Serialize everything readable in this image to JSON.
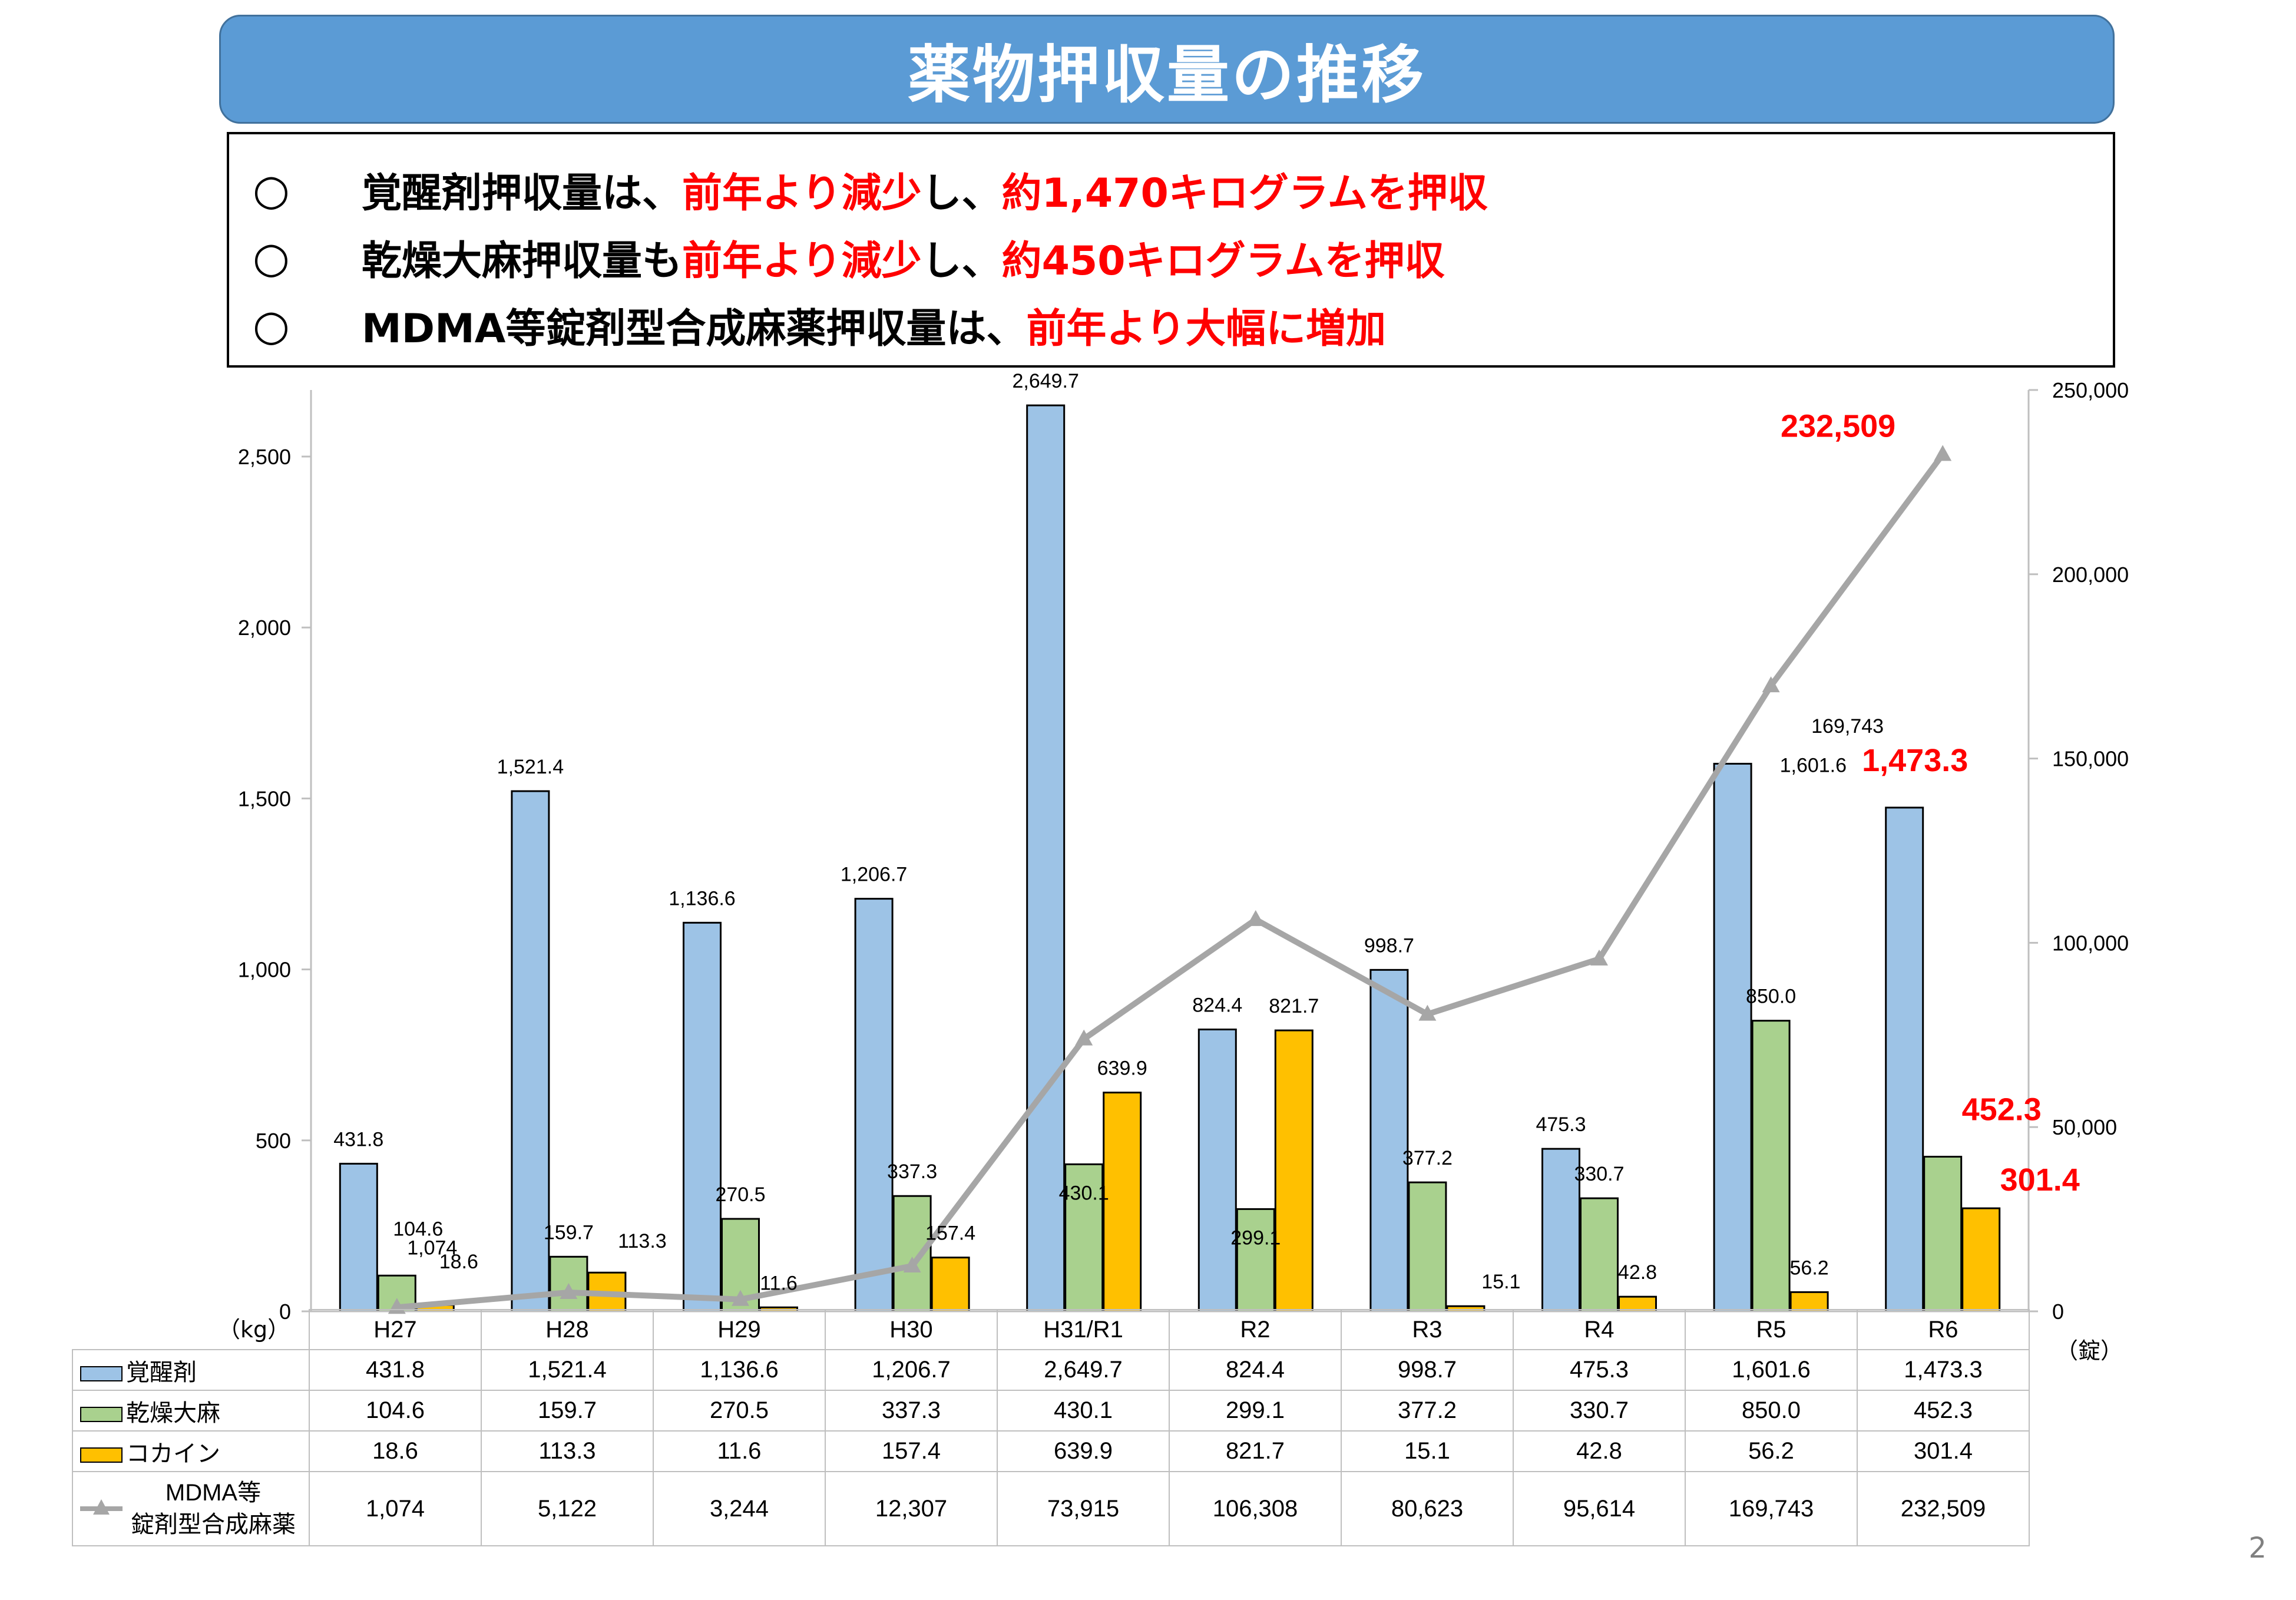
{
  "title": "薬物押収量の推移",
  "summary": [
    {
      "bullet": "○",
      "parts": [
        {
          "text": "覚醒剤押収量は、",
          "red": false
        },
        {
          "text": "前年より減少",
          "red": true
        },
        {
          "text": "し、",
          "red": false
        },
        {
          "text": "約1,470キログラムを押収",
          "red": true
        }
      ]
    },
    {
      "bullet": "○",
      "parts": [
        {
          "text": "乾燥大麻押収量も",
          "red": false
        },
        {
          "text": "前年より減少",
          "red": true
        },
        {
          "text": "し、",
          "red": false
        },
        {
          "text": "約450キログラムを押収",
          "red": true
        }
      ]
    },
    {
      "bullet": "○",
      "parts": [
        {
          "text": "MDMA等錠剤型合成麻薬押収量は、",
          "red": false
        },
        {
          "text": "前年より大幅に増加",
          "red": true
        }
      ]
    }
  ],
  "chart_data": {
    "type": "bar",
    "categories": [
      "H27",
      "H28",
      "H29",
      "H30",
      "H31/R1",
      "R2",
      "R3",
      "R4",
      "R5",
      "R6"
    ],
    "series": [
      {
        "name": "覚醒剤",
        "type": "bar",
        "axis": "left",
        "color": "#9dc3e6",
        "values": [
          431.8,
          1521.4,
          1136.6,
          1206.7,
          2649.7,
          824.4,
          998.7,
          475.3,
          1601.6,
          1473.3
        ],
        "labels": [
          "431.8",
          "1,521.4",
          "1,136.6",
          "1,206.7",
          "2,649.7",
          "824.4",
          "998.7",
          "475.3",
          "1,601.6",
          "1,473.3"
        ]
      },
      {
        "name": "乾燥大麻",
        "type": "bar",
        "axis": "left",
        "color": "#a9d18e",
        "values": [
          104.6,
          159.7,
          270.5,
          337.3,
          430.1,
          299.1,
          377.2,
          330.7,
          850.0,
          452.3
        ],
        "labels": [
          "104.6",
          "159.7",
          "270.5",
          "337.3",
          "430.1",
          "299.1",
          "377.2",
          "330.7",
          "850.0",
          "452.3"
        ]
      },
      {
        "name": "コカイン",
        "type": "bar",
        "axis": "left",
        "color": "#ffc000",
        "values": [
          18.6,
          113.3,
          11.6,
          157.4,
          639.9,
          821.7,
          15.1,
          42.8,
          56.2,
          301.4
        ],
        "labels": [
          "18.6",
          "113.3",
          "11.6",
          "157.4",
          "639.9",
          "821.7",
          "15.1",
          "42.8",
          "56.2",
          "301.4"
        ]
      },
      {
        "name": "MDMA等錠剤型合成麻薬",
        "name_lines": [
          "MDMA等",
          "錠剤型合成麻薬"
        ],
        "type": "line",
        "axis": "right",
        "color": "#a6a6a6",
        "values": [
          1074,
          5122,
          3244,
          12307,
          73915,
          106308,
          80623,
          95614,
          169743,
          232509
        ],
        "labels": [
          "1,074",
          "5,122",
          "3,244",
          "12,307",
          "73,915",
          "106,308",
          "80,623",
          "95,614",
          "169,743",
          "232,509"
        ]
      }
    ],
    "y_left": {
      "unit": "（kg）",
      "range": [
        0,
        2700
      ],
      "ticks": [
        0,
        500,
        1000,
        1500,
        2000,
        2500
      ],
      "tick_labels": [
        "0",
        "500",
        "1,000",
        "1,500",
        "2,000",
        "2,500"
      ]
    },
    "y_right": {
      "unit": "（錠）",
      "range": [
        0,
        250000
      ],
      "ticks": [
        0,
        50000,
        100000,
        150000,
        200000,
        250000
      ],
      "tick_labels": [
        "0",
        "50,000",
        "100,000",
        "150,000",
        "200,000",
        "250,000"
      ]
    },
    "chart_labels": [
      {
        "series": 0,
        "index": 0,
        "text": "431.8"
      },
      {
        "series": 1,
        "index": 0,
        "text": "104.6"
      },
      {
        "series": 3,
        "index": 0,
        "text": "1,074"
      },
      {
        "series": 2,
        "index": 0,
        "text": "18.6"
      },
      {
        "series": 0,
        "index": 1,
        "text": "1,521.4"
      },
      {
        "series": 1,
        "index": 1,
        "text": "159.7"
      },
      {
        "series": 2,
        "index": 1,
        "text": "113.3"
      },
      {
        "series": 0,
        "index": 2,
        "text": "1,136.6"
      },
      {
        "series": 1,
        "index": 2,
        "text": "270.5"
      },
      {
        "series": 2,
        "index": 2,
        "text": "11.6"
      },
      {
        "series": 0,
        "index": 3,
        "text": "1,206.7"
      },
      {
        "series": 1,
        "index": 3,
        "text": "337.3"
      },
      {
        "series": 2,
        "index": 3,
        "text": "157.4"
      },
      {
        "series": 0,
        "index": 4,
        "text": "2,649.7"
      },
      {
        "series": 1,
        "index": 4,
        "text": "430.1"
      },
      {
        "series": 2,
        "index": 4,
        "text": "639.9"
      },
      {
        "series": 0,
        "index": 5,
        "text": "824.4"
      },
      {
        "series": 1,
        "index": 5,
        "text": "299.1"
      },
      {
        "series": 2,
        "index": 5,
        "text": "821.7"
      },
      {
        "series": 0,
        "index": 6,
        "text": "998.7"
      },
      {
        "series": 1,
        "index": 6,
        "text": "377.2"
      },
      {
        "series": 2,
        "index": 6,
        "text": "15.1"
      },
      {
        "series": 0,
        "index": 7,
        "text": "475.3"
      },
      {
        "series": 1,
        "index": 7,
        "text": "330.7"
      },
      {
        "series": 2,
        "index": 7,
        "text": "42.8"
      },
      {
        "series": 0,
        "index": 8,
        "text": "1,601.6"
      },
      {
        "series": 1,
        "index": 8,
        "text": "850.0"
      },
      {
        "series": 2,
        "index": 8,
        "text": "56.2"
      },
      {
        "series": 3,
        "index": 8,
        "text": "169,743"
      },
      {
        "series": 0,
        "index": 9,
        "text": "1,473.3",
        "highlight": true
      },
      {
        "series": 1,
        "index": 9,
        "text": "452.3",
        "highlight": true
      },
      {
        "series": 2,
        "index": 9,
        "text": "301.4",
        "highlight": true
      },
      {
        "series": 3,
        "index": 9,
        "text": "232,509",
        "highlight": true
      }
    ],
    "highlight_color": "#ff0000",
    "legend": "table-below",
    "grid": false
  },
  "page_number": "2"
}
